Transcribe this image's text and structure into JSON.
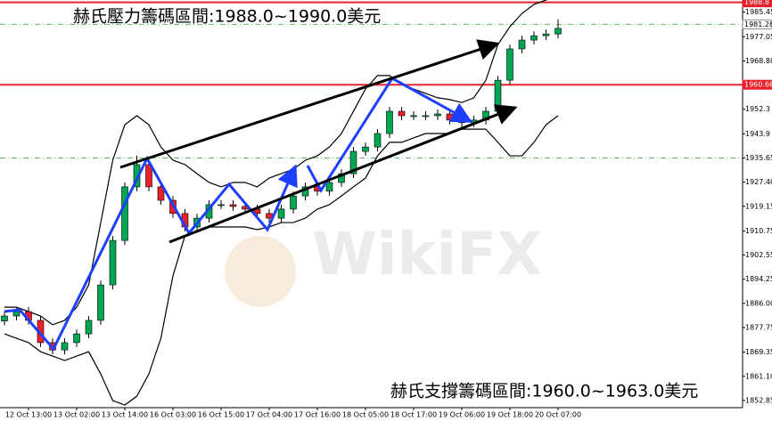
{
  "chart_data": {
    "type": "candlestick",
    "title": "赫氏壓力籌碼區間:1988.0~1990.0美元",
    "subtitle": "赫氏支撐籌碼區間:1960.0~1963.0美元",
    "watermark": "WikiFX",
    "categories": [
      null,
      null,
      "12 Oct 13:00",
      null,
      null,
      null,
      "13 Oct 02:00",
      null,
      null,
      null,
      "13 Oct 14:00",
      null,
      null,
      null,
      "16 Oct 03:00",
      null,
      null,
      null,
      "16 Oct 15:00",
      null,
      null,
      null,
      "17 Oct 04:00",
      null,
      null,
      null,
      "17 Oct 16:00",
      null,
      null,
      null,
      "18 Oct 05:00",
      null,
      null,
      null,
      "18 Oct 17:00",
      null,
      null,
      null,
      "19 Oct 06:00",
      null,
      null,
      null,
      "19 Oct 18:00",
      null,
      null,
      null,
      "20 Oct 07:00"
    ],
    "open": [
      1880.0,
      1881.7,
      1883.2,
      1880.2,
      1872.6,
      1870.1,
      1872.6,
      1875.6,
      1880.2,
      1892.3,
      1907.5,
      1925.8,
      1933.4,
      1925.8,
      1921.2,
      1916.7,
      1912.1,
      1915.1,
      1919.7,
      1919.7,
      1919.1,
      1918.2,
      1916.7,
      1915.1,
      1918.2,
      1922.7,
      1925.8,
      1924.3,
      1927.3,
      1930.3,
      1937.9,
      1939.4,
      1944.0,
      1951.6,
      1950.1,
      1950.1,
      1950.1,
      1950.7,
      1948.6,
      1947.7,
      1948.6,
      1951.6,
      1962.2,
      1972.9,
      1975.9,
      1977.4,
      1978.0
    ],
    "high": [
      1883.2,
      1884.7,
      1884.7,
      1881.7,
      1874.1,
      1874.1,
      1877.1,
      1881.7,
      1893.8,
      1909.0,
      1927.3,
      1936.4,
      1934.9,
      1927.3,
      1922.7,
      1918.2,
      1916.6,
      1921.2,
      1921.2,
      1921.2,
      1920.6,
      1919.7,
      1918.2,
      1919.7,
      1924.2,
      1927.3,
      1927.3,
      1928.8,
      1931.8,
      1939.4,
      1940.9,
      1945.5,
      1953.1,
      1953.1,
      1951.6,
      1951.6,
      1952.2,
      1952.2,
      1950.1,
      1950.1,
      1953.1,
      1963.7,
      1974.4,
      1977.4,
      1978.9,
      1979.5,
      1983.0
    ],
    "low": [
      1878.5,
      1880.2,
      1878.7,
      1871.1,
      1868.6,
      1868.6,
      1871.1,
      1874.1,
      1878.7,
      1890.8,
      1906.0,
      1924.3,
      1924.3,
      1919.7,
      1915.2,
      1910.6,
      1910.6,
      1913.6,
      1918.2,
      1917.6,
      1916.7,
      1915.2,
      1913.6,
      1913.6,
      1916.7,
      1921.2,
      1922.8,
      1922.8,
      1925.8,
      1928.8,
      1936.4,
      1937.9,
      1942.5,
      1948.6,
      1948.6,
      1948.6,
      1948.6,
      1947.1,
      1946.2,
      1946.2,
      1947.1,
      1950.1,
      1960.7,
      1971.4,
      1974.4,
      1975.9,
      1976.5
    ],
    "close": [
      1881.7,
      1883.2,
      1880.2,
      1872.6,
      1870.1,
      1872.6,
      1875.6,
      1880.2,
      1892.3,
      1907.5,
      1925.8,
      1933.4,
      1925.8,
      1921.2,
      1916.7,
      1912.1,
      1915.1,
      1919.7,
      1919.7,
      1919.1,
      1918.2,
      1916.7,
      1915.1,
      1918.2,
      1922.7,
      1925.8,
      1924.3,
      1927.3,
      1930.3,
      1937.9,
      1939.4,
      1944.0,
      1951.6,
      1950.1,
      1950.1,
      1950.1,
      1950.7,
      1948.6,
      1947.7,
      1948.6,
      1951.6,
      1962.2,
      1972.9,
      1975.9,
      1977.4,
      1978.0,
      1979.9
    ],
    "up_color": "#00a651",
    "down_color": "#e8202a",
    "bands": [
      {
        "color": "#000000",
        "values": [
          1884.7,
          1884.7,
          1883.2,
          1881.7,
          1878.7,
          1880.2,
          1884.7,
          1892.3,
          1913.6,
          1934.9,
          1947.0,
          1950.1,
          1947.0,
          1939.4,
          1934.9,
          1933.4,
          1930.3,
          1927.3,
          1925.8,
          1927.3,
          1927.3,
          1925.8,
          1928.8,
          1930.3,
          1931.8,
          1934.9,
          1936.4,
          1939.4,
          1944.0,
          1951.6,
          1959.2,
          1963.8,
          1963.8,
          1960.7,
          1959.2,
          1957.7,
          1956.2,
          1955.6,
          1954.6,
          1956.2,
          1962.2,
          1974.4,
          1980.5,
          1985.0,
          1988.1,
          1989.6,
          1991.1
        ]
      },
      {
        "color": "#000000",
        "values": [
          1875.6,
          1874.1,
          1872.6,
          1869.5,
          1868.0,
          1866.5,
          1868.0,
          1869.5,
          1861.9,
          1852.8,
          1851.3,
          1854.3,
          1861.9,
          1874.1,
          1895.4,
          1909.1,
          1910.6,
          1912.1,
          1912.1,
          1912.1,
          1912.1,
          1911.2,
          1912.1,
          1913.6,
          1913.6,
          1915.1,
          1918.2,
          1919.7,
          1922.7,
          1925.8,
          1928.8,
          1936.4,
          1941.0,
          1941.0,
          1942.5,
          1944.0,
          1944.0,
          1944.0,
          1945.5,
          1945.5,
          1945.5,
          1941.0,
          1936.4,
          1936.4,
          1941.0,
          1947.0,
          1950.1
        ]
      }
    ],
    "ylim": [
      1850.4,
      1989.6
    ],
    "yticks": [
      1985.45,
      1977.05,
      {
        "value": 1968.8,
        "label": "1968.80"
      },
      1952.3,
      1943.9,
      1935.65,
      {
        "value": 1927.4,
        "label": "1927.40"
      },
      1919.15,
      1910.75,
      1902.55,
      1894.25,
      {
        "value": 1886.0,
        "label": "1886.00"
      },
      1877.75,
      1869.35,
      {
        "value": 1861.1,
        "label": "1861.10"
      },
      1852.85
    ],
    "hlines": [
      {
        "value": 1988.8,
        "color": "#e8202a",
        "dash": false,
        "label": "1988.8"
      },
      {
        "value": 1960.66,
        "color": "#e8202a",
        "dash": false,
        "label": "1960.66"
      },
      {
        "value": 1981.28,
        "color": "#5fbf5f",
        "dash": true,
        "label": "1981.28"
      },
      {
        "value": 1935.65,
        "color": "#5fbf5f",
        "dash": true
      }
    ]
  }
}
